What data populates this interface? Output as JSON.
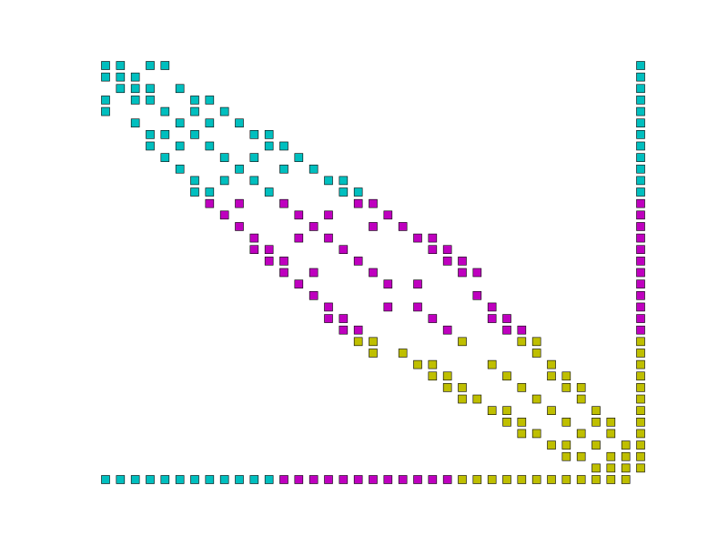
{
  "chart_data": {
    "type": "scatter",
    "marker": "square",
    "y_inverted": true,
    "xlim": [
      0,
      36
    ],
    "ylim": [
      0,
      36
    ],
    "series": [
      {
        "color": "#00bfbf",
        "x": [
          0,
          1,
          3,
          4,
          36,
          0,
          1,
          2,
          36,
          1,
          2,
          3,
          5,
          36,
          0,
          2,
          3,
          6,
          7,
          36,
          0,
          4,
          6,
          8,
          36,
          2,
          5,
          7,
          9,
          36,
          3,
          4,
          6,
          10,
          11,
          36,
          3,
          5,
          7,
          11,
          12,
          36,
          4,
          8,
          10,
          13,
          36,
          5,
          9,
          12,
          14,
          36,
          6,
          8,
          10,
          15,
          16,
          36,
          6,
          7,
          11,
          16,
          17,
          36,
          0,
          1,
          2,
          3,
          4,
          5,
          6,
          7,
          8,
          9,
          10,
          11
        ],
        "values": [
          0,
          0,
          0,
          0,
          0,
          1,
          1,
          1,
          1,
          2,
          2,
          2,
          2,
          2,
          3,
          3,
          3,
          3,
          3,
          3,
          4,
          4,
          4,
          4,
          4,
          5,
          5,
          5,
          5,
          5,
          6,
          6,
          6,
          6,
          6,
          6,
          7,
          7,
          7,
          7,
          7,
          7,
          8,
          8,
          8,
          8,
          8,
          9,
          9,
          9,
          9,
          9,
          10,
          10,
          10,
          10,
          10,
          10,
          11,
          11,
          11,
          11,
          11,
          11,
          36,
          36,
          36,
          36,
          36,
          36,
          36,
          36,
          36,
          36,
          36,
          36
        ]
      },
      {
        "color": "#bf00bf",
        "x": [
          7,
          9,
          12,
          17,
          18,
          36,
          8,
          13,
          15,
          19,
          36,
          9,
          14,
          18,
          20,
          36,
          10,
          13,
          15,
          21,
          22,
          36,
          10,
          11,
          16,
          22,
          23,
          36,
          11,
          12,
          17,
          23,
          24,
          36,
          12,
          14,
          18,
          24,
          25,
          36,
          13,
          19,
          21,
          36,
          14,
          25,
          36,
          15,
          19,
          21,
          26,
          36,
          15,
          16,
          22,
          26,
          27,
          36,
          16,
          17,
          23,
          27,
          28,
          36,
          12,
          13,
          14,
          15,
          16,
          17,
          18,
          19,
          20,
          21,
          22,
          23
        ],
        "values": [
          12,
          12,
          12,
          12,
          12,
          12,
          13,
          13,
          13,
          13,
          13,
          14,
          14,
          14,
          14,
          14,
          15,
          15,
          15,
          15,
          15,
          15,
          16,
          16,
          16,
          16,
          16,
          16,
          17,
          17,
          17,
          17,
          17,
          17,
          18,
          18,
          18,
          18,
          18,
          18,
          19,
          19,
          19,
          19,
          20,
          20,
          20,
          21,
          21,
          21,
          21,
          21,
          22,
          22,
          22,
          22,
          22,
          22,
          23,
          23,
          23,
          23,
          23,
          23,
          36,
          36,
          36,
          36,
          36,
          36,
          36,
          36,
          36,
          36,
          36,
          36
        ]
      },
      {
        "color": "#bfbf00",
        "x": [
          17,
          18,
          24,
          28,
          29,
          36,
          18,
          20,
          29,
          36,
          21,
          22,
          26,
          30,
          36,
          22,
          23,
          27,
          30,
          31,
          36,
          23,
          24,
          28,
          31,
          32,
          36,
          24,
          25,
          29,
          32,
          36,
          26,
          27,
          30,
          33,
          36,
          27,
          28,
          31,
          33,
          34,
          36,
          28,
          29,
          32,
          34,
          36,
          30,
          31,
          33,
          35,
          36,
          31,
          32,
          34,
          35,
          36,
          33,
          34,
          35,
          36,
          24,
          25,
          26,
          27,
          28,
          29,
          30,
          31,
          32,
          33,
          34,
          35
        ],
        "values": [
          24,
          24,
          24,
          24,
          24,
          24,
          25,
          25,
          25,
          25,
          26,
          26,
          26,
          26,
          26,
          27,
          27,
          27,
          27,
          27,
          27,
          28,
          28,
          28,
          28,
          28,
          28,
          29,
          29,
          29,
          29,
          29,
          30,
          30,
          30,
          30,
          30,
          31,
          31,
          31,
          31,
          31,
          31,
          32,
          32,
          32,
          32,
          32,
          33,
          33,
          33,
          33,
          33,
          34,
          34,
          34,
          34,
          34,
          35,
          35,
          35,
          35,
          36,
          36,
          36,
          36,
          36,
          36,
          36,
          36,
          36,
          36,
          36,
          36
        ]
      }
    ]
  }
}
